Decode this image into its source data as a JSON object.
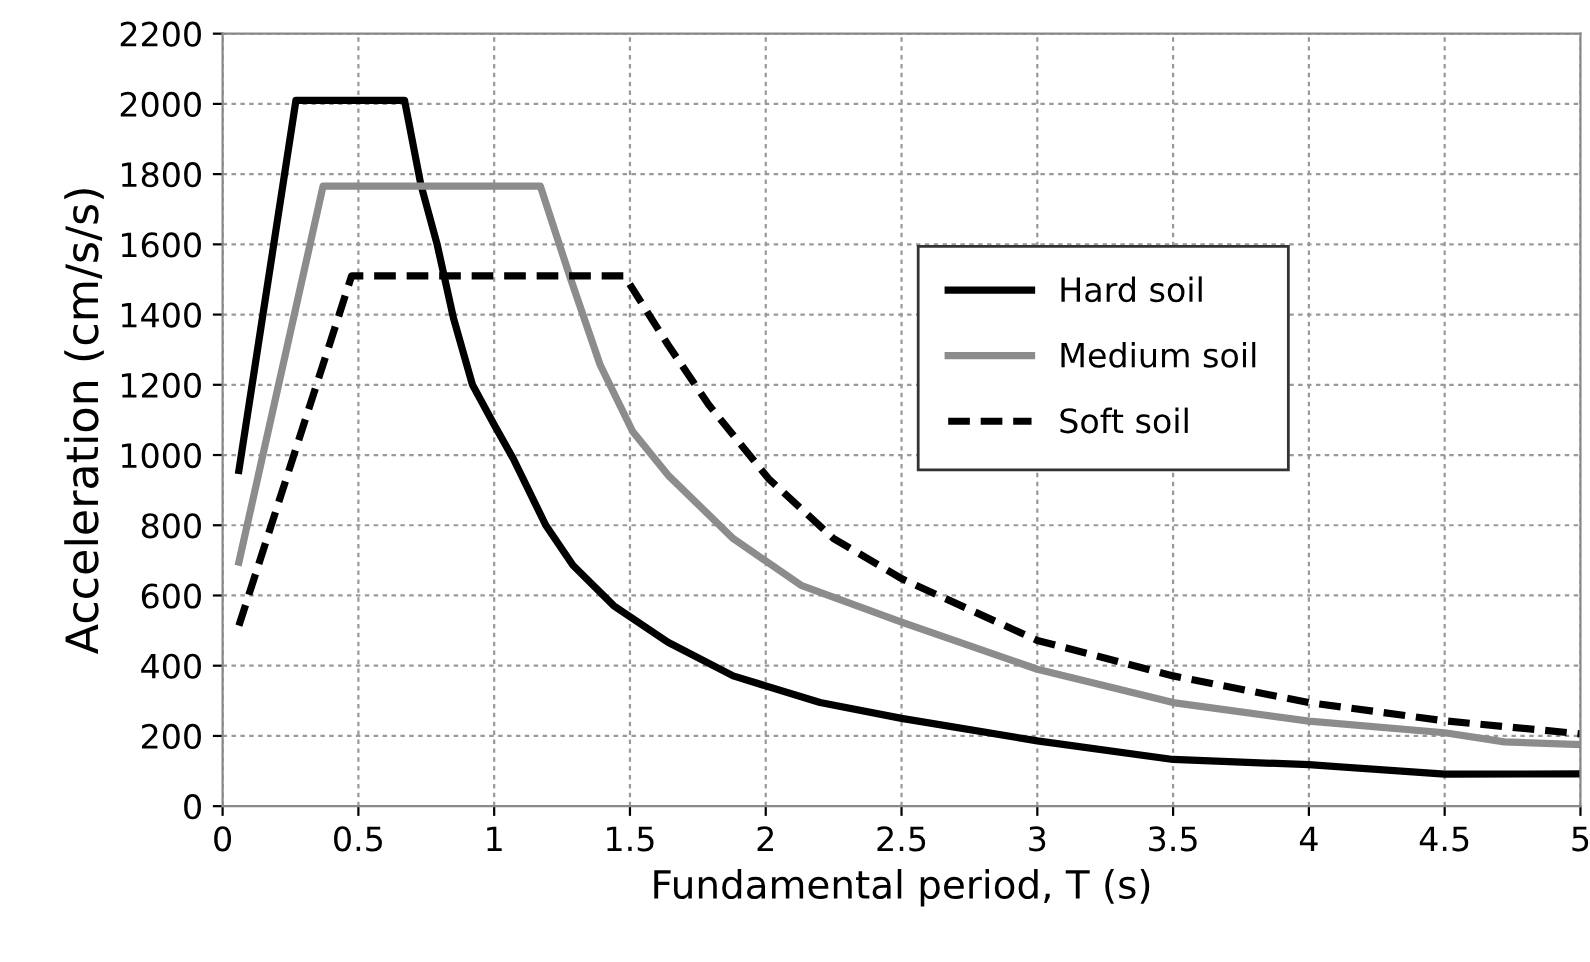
{
  "chart_data": {
    "type": "line",
    "xlabel": "Fundamental period, T (s)",
    "ylabel": "Acceleration (cm/s/s)",
    "xlim": [
      0,
      5
    ],
    "xticks": [
      0,
      0.5,
      1,
      1.5,
      2,
      2.5,
      3,
      3.5,
      4,
      4.5,
      5
    ],
    "ylim": [
      0,
      2200
    ],
    "yticks": [
      0,
      200,
      400,
      600,
      800,
      1000,
      1200,
      1400,
      1600,
      1800,
      2000,
      2200
    ],
    "grid": true,
    "legend": "right",
    "marker": "none",
    "series": [
      {
        "name": "Hard soil",
        "color": "#000000",
        "line_style": "solid",
        "x": [
          0.06,
          0.27,
          0.67,
          0.73,
          0.79,
          0.85,
          0.92,
          1.0,
          1.07,
          1.19,
          1.29,
          1.44,
          1.64,
          1.88,
          2.2,
          2.5,
          3,
          3.5,
          4,
          4.5,
          5
        ],
        "values": [
          956,
          2010,
          2010,
          1770,
          1600,
          1390,
          1200,
          1086,
          990,
          800,
          686,
          571,
          467,
          371,
          295,
          250,
          186,
          133,
          118,
          91,
          92
        ]
      },
      {
        "name": "Medium soil",
        "color": "#8c8c8c",
        "line_style": "solid",
        "x": [
          0.06,
          0.37,
          1.17,
          1.28,
          1.39,
          1.51,
          1.64,
          1.88,
          2.13,
          2.5,
          3,
          3.5,
          4,
          4.5,
          4.72,
          5
        ],
        "values": [
          695,
          1766,
          1766,
          1505,
          1257,
          1067,
          943,
          762,
          629,
          524,
          390,
          295,
          242,
          209,
          183,
          175
        ]
      },
      {
        "name": "Soft soil",
        "color": "#000000",
        "line_style": "dashed",
        "x": [
          0.06,
          0.475,
          1.48,
          1.64,
          1.79,
          2.01,
          2.25,
          2.5,
          3,
          3.5,
          4,
          4.5,
          5
        ],
        "values": [
          514,
          1510,
          1510,
          1314,
          1143,
          933,
          762,
          648,
          472,
          371,
          295,
          243,
          206
        ]
      }
    ]
  }
}
